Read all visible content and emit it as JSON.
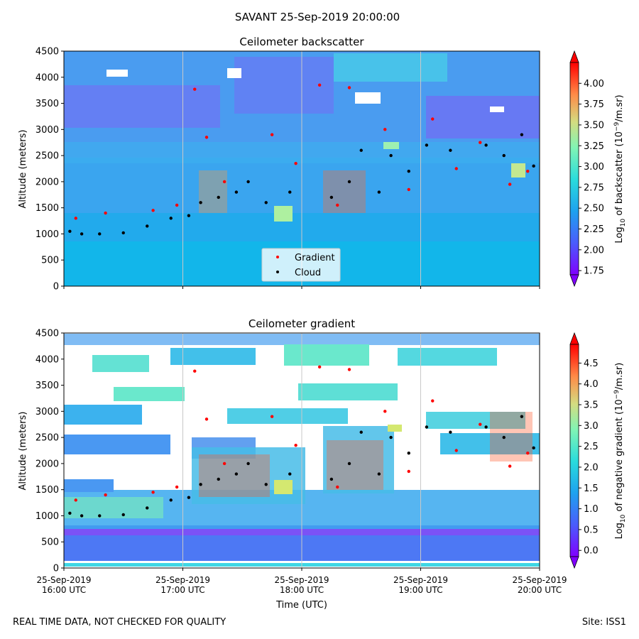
{
  "figure": {
    "suptitle": "SAVANT 25-Sep-2019 20:00:00",
    "footer_left": "REAL TIME DATA, NOT CHECKED FOR QUALITY",
    "footer_right": "Site: ISS1"
  },
  "chart_data": [
    {
      "type": "heatmap",
      "title": "Ceilometer backscatter",
      "ylabel": "Altitude (meters)",
      "xlabel": "",
      "xlim": [
        "25-Sep-2019 16:00 UTC",
        "25-Sep-2019 20:00 UTC"
      ],
      "ylim": [
        0,
        4500
      ],
      "yticks": [
        "0",
        "500",
        "1000",
        "1500",
        "2000",
        "2500",
        "3000",
        "3500",
        "4000",
        "4500"
      ],
      "xticks": [],
      "legend": {
        "placement": "lower-center",
        "entries": [
          "Gradient",
          "Cloud"
        ]
      },
      "colorbar": {
        "label_prefix": "Log",
        "label_sub": "10",
        "label_mid": " of backscatter (10",
        "label_sup": "−9",
        "label_end": "/m.sr)",
        "range": [
          1.7,
          4.25
        ],
        "ticks": [
          "1.75",
          "2.00",
          "2.25",
          "2.50",
          "2.75",
          "3.00",
          "3.25",
          "3.50",
          "3.75",
          "4.00"
        ]
      },
      "series": [
        {
          "name": "Cloud",
          "color": "#000000",
          "points": [
            [
              0.05,
              1050
            ],
            [
              0.15,
              1000
            ],
            [
              0.3,
              1000
            ],
            [
              0.5,
              1020
            ],
            [
              0.7,
              1150
            ],
            [
              0.9,
              1300
            ],
            [
              1.05,
              1350
            ],
            [
              1.15,
              1600
            ],
            [
              1.3,
              1700
            ],
            [
              1.45,
              1800
            ],
            [
              1.55,
              2000
            ],
            [
              1.7,
              1600
            ],
            [
              1.9,
              1800
            ],
            [
              2.25,
              1700
            ],
            [
              2.4,
              2000
            ],
            [
              2.5,
              2600
            ],
            [
              2.65,
              1800
            ],
            [
              2.75,
              2500
            ],
            [
              2.9,
              2200
            ],
            [
              3.05,
              2700
            ],
            [
              3.25,
              2600
            ],
            [
              3.55,
              2700
            ],
            [
              3.7,
              2500
            ],
            [
              3.85,
              2900
            ],
            [
              3.95,
              2300
            ]
          ]
        },
        {
          "name": "Gradient",
          "color": "#ff0000",
          "points": [
            [
              0.1,
              1300
            ],
            [
              0.35,
              1400
            ],
            [
              0.75,
              1450
            ],
            [
              0.95,
              1550
            ],
            [
              1.1,
              3770
            ],
            [
              1.2,
              2850
            ],
            [
              1.35,
              2000
            ],
            [
              1.75,
              2900
            ],
            [
              1.95,
              2350
            ],
            [
              2.15,
              3850
            ],
            [
              2.3,
              1550
            ],
            [
              2.4,
              3800
            ],
            [
              2.7,
              3000
            ],
            [
              2.9,
              1850
            ],
            [
              3.1,
              3200
            ],
            [
              3.3,
              2250
            ],
            [
              3.5,
              2750
            ],
            [
              3.75,
              1950
            ],
            [
              3.9,
              2200
            ]
          ]
        }
      ]
    },
    {
      "type": "heatmap",
      "title": "Ceilometer gradient",
      "ylabel": "Altitude (meters)",
      "xlabel": "Time (UTC)",
      "xlim": [
        "25-Sep-2019 16:00 UTC",
        "25-Sep-2019 20:00 UTC"
      ],
      "ylim": [
        0,
        4500
      ],
      "yticks": [
        "0",
        "500",
        "1000",
        "1500",
        "2000",
        "2500",
        "3000",
        "3500",
        "4000",
        "4500"
      ],
      "xticks": [
        {
          "date": "25-Sep-2019",
          "time": "16:00 UTC"
        },
        {
          "date": "25-Sep-2019",
          "time": "17:00 UTC"
        },
        {
          "date": "25-Sep-2019",
          "time": "18:00 UTC"
        },
        {
          "date": "25-Sep-2019",
          "time": "19:00 UTC"
        },
        {
          "date": "25-Sep-2019",
          "time": "20:00 UTC"
        }
      ],
      "colorbar": {
        "label_prefix": "Log",
        "label_sub": "10",
        "label_mid": " of negative gradient (10",
        "label_sup": "−9",
        "label_end": "/m.sr)",
        "range": [
          -0.15,
          4.95
        ],
        "ticks": [
          "0.0",
          "0.5",
          "1.0",
          "1.5",
          "2.0",
          "2.5",
          "3.0",
          "3.5",
          "4.0",
          "4.5"
        ]
      },
      "series": [
        {
          "name": "Cloud",
          "color": "#000000",
          "points": [
            [
              0.05,
              1050
            ],
            [
              0.15,
              1000
            ],
            [
              0.3,
              1000
            ],
            [
              0.5,
              1020
            ],
            [
              0.7,
              1150
            ],
            [
              0.9,
              1300
            ],
            [
              1.05,
              1350
            ],
            [
              1.15,
              1600
            ],
            [
              1.3,
              1700
            ],
            [
              1.45,
              1800
            ],
            [
              1.55,
              2000
            ],
            [
              1.7,
              1600
            ],
            [
              1.9,
              1800
            ],
            [
              2.25,
              1700
            ],
            [
              2.4,
              2000
            ],
            [
              2.5,
              2600
            ],
            [
              2.65,
              1800
            ],
            [
              2.75,
              2500
            ],
            [
              2.9,
              2200
            ],
            [
              3.05,
              2700
            ],
            [
              3.25,
              2600
            ],
            [
              3.55,
              2700
            ],
            [
              3.7,
              2500
            ],
            [
              3.85,
              2900
            ],
            [
              3.95,
              2300
            ]
          ]
        },
        {
          "name": "Gradient",
          "color": "#ff0000",
          "points": [
            [
              0.1,
              1300
            ],
            [
              0.35,
              1400
            ],
            [
              0.75,
              1450
            ],
            [
              0.95,
              1550
            ],
            [
              1.1,
              3770
            ],
            [
              1.2,
              2850
            ],
            [
              1.35,
              2000
            ],
            [
              1.75,
              2900
            ],
            [
              1.95,
              2350
            ],
            [
              2.15,
              3850
            ],
            [
              2.3,
              1550
            ],
            [
              2.4,
              3800
            ],
            [
              2.7,
              3000
            ],
            [
              2.9,
              1850
            ],
            [
              3.1,
              3200
            ],
            [
              3.3,
              2250
            ],
            [
              3.5,
              2750
            ],
            [
              3.75,
              1950
            ],
            [
              3.9,
              2200
            ]
          ]
        }
      ]
    }
  ]
}
